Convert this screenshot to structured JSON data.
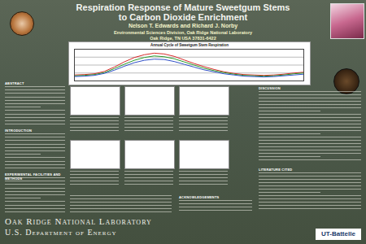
{
  "header": {
    "title_lines": [
      "Respiration Response of Mature Sweetgum Stems",
      "to Carbon Dioxide Enrichment"
    ],
    "authors": "Nelson T. Edwards and Richard J. Norby",
    "affiliation_lines": [
      "Environmental Sciences Division, Oak Ridge National Laboratory",
      "Oak Ridge, TN USA 37831-6422"
    ]
  },
  "sections": {
    "left": [
      "ABSTRACT",
      "INTRODUCTION",
      "EXPERIMENTAL FACILITIES AND METHODS"
    ],
    "middle": [
      "ACKNOWLEDGEMENTS"
    ],
    "right": [
      "DISCUSSION",
      "LITERATURE CITED"
    ]
  },
  "footer": {
    "lab_lines": [
      "Oak Ridge National Laboratory",
      "U.S. Department of Energy"
    ],
    "logo": "UT-Battelle"
  },
  "chart_data": {
    "type": "line",
    "title": "Annual Cycle of Sweetgum Stem Respiration",
    "x": [
      1,
      2,
      3,
      4,
      5,
      6,
      7,
      8,
      9,
      10,
      11,
      12,
      13,
      14,
      15,
      16,
      17,
      18,
      19,
      20,
      21,
      22,
      23,
      24
    ],
    "xlim": [
      1,
      24
    ],
    "ylim": [
      0,
      8
    ],
    "yticks": [
      0,
      2,
      4,
      6,
      8
    ],
    "grid": true,
    "tick_labels": false,
    "series": [
      {
        "color": "#d82a2a",
        "values": [
          1.5,
          1.6,
          1.8,
          2.4,
          3.5,
          4.8,
          5.9,
          6.6,
          7.0,
          6.8,
          6.2,
          5.3,
          4.4,
          3.6,
          2.9,
          2.3,
          1.9,
          1.6,
          1.5,
          1.4,
          1.5,
          1.7,
          2.0,
          2.2
        ]
      },
      {
        "color": "#2a9a2a",
        "values": [
          1.3,
          1.4,
          1.6,
          2.1,
          3.1,
          4.2,
          5.2,
          5.9,
          6.3,
          6.1,
          5.6,
          4.8,
          4.0,
          3.2,
          2.6,
          2.1,
          1.7,
          1.4,
          1.3,
          1.2,
          1.3,
          1.5,
          1.8,
          2.0
        ]
      },
      {
        "color": "#3050c8",
        "values": [
          1.1,
          1.2,
          1.4,
          1.9,
          2.7,
          3.7,
          4.6,
          5.2,
          5.5,
          5.4,
          4.9,
          4.2,
          3.5,
          2.8,
          2.3,
          1.8,
          1.5,
          1.2,
          1.1,
          1.0,
          1.1,
          1.3,
          1.5,
          1.7
        ]
      }
    ]
  }
}
